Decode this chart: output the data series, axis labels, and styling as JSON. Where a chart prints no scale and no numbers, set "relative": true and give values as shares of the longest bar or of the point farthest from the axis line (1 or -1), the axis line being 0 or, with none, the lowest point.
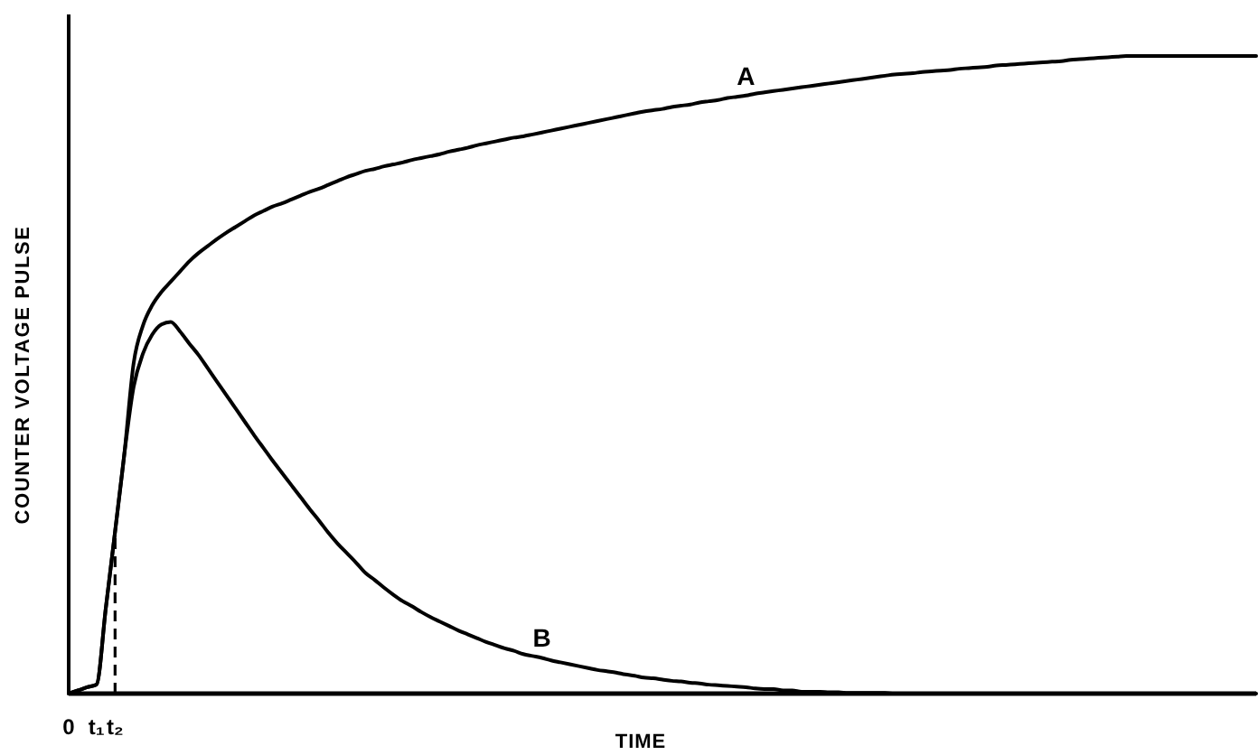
{
  "chart_data": {
    "type": "line",
    "xlabel": "TIME",
    "ylabel": "COUNTER VOLTAGE PULSE",
    "relative": true,
    "categories": [
      "0",
      null,
      null,
      "t₁",
      null,
      "t₂",
      null,
      null,
      null,
      null,
      null,
      null,
      null,
      null,
      null,
      null,
      null,
      null,
      null,
      null,
      null,
      null,
      null,
      null,
      null,
      null,
      null,
      null,
      null,
      null,
      null,
      null,
      null,
      null,
      null,
      null,
      null,
      null,
      null,
      null,
      null,
      null,
      null,
      null,
      null,
      null,
      null,
      null,
      null,
      null,
      null,
      null,
      null,
      null,
      null,
      null,
      null,
      null,
      null,
      null,
      null,
      null,
      null,
      null,
      null,
      null,
      null,
      null,
      null,
      null,
      null,
      null,
      null,
      null,
      null,
      null,
      null,
      null,
      null,
      null,
      null,
      null,
      null,
      null,
      null,
      null,
      null,
      null,
      null,
      null,
      null,
      null,
      null,
      null,
      null,
      null,
      null,
      null,
      null,
      null,
      null,
      null,
      null,
      null,
      null,
      null,
      null,
      null,
      null,
      null,
      null,
      null,
      null,
      null,
      null,
      null,
      null,
      null,
      null,
      null,
      null,
      null,
      null,
      null,
      null,
      null,
      null,
      null,
      null
    ],
    "series": [
      {
        "name": "A",
        "color": "#000000",
        "values": [
          0,
          0.005,
          0.01,
          0.014,
          0.134,
          0.254,
          0.376,
          0.518,
          0.577,
          0.609,
          0.63,
          0.646,
          0.662,
          0.678,
          0.691,
          0.702,
          0.713,
          0.723,
          0.732,
          0.741,
          0.75,
          0.757,
          0.764,
          0.769,
          0.775,
          0.781,
          0.787,
          0.792,
          0.798,
          0.804,
          0.81,
          0.815,
          0.82,
          0.823,
          0.827,
          0.83,
          0.833,
          0.837,
          0.84,
          0.843,
          0.846,
          0.85,
          0.853,
          0.856,
          0.86,
          0.863,
          0.866,
          0.869,
          0.872,
          0.874,
          0.877,
          0.88,
          0.883,
          0.886,
          0.889,
          0.892,
          0.895,
          0.898,
          0.901,
          0.904,
          0.907,
          0.91,
          0.913,
          0.915,
          0.917,
          0.92,
          0.922,
          0.924,
          0.927,
          0.929,
          0.931,
          0.934,
          0.936,
          0.938,
          0.941,
          0.943,
          0.945,
          0.947,
          0.949,
          0.951,
          0.953,
          0.955,
          0.957,
          0.959,
          0.961,
          0.963,
          0.965,
          0.967,
          0.969,
          0.971,
          0.972,
          0.973,
          0.975,
          0.976,
          0.977,
          0.978,
          0.98,
          0.981,
          0.982,
          0.983,
          0.985,
          0.986,
          0.987,
          0.988,
          0.989,
          0.99,
          0.991,
          0.992,
          0.994,
          0.995,
          0.996,
          0.997,
          0.998,
          0.999,
          1.0,
          1.0,
          1.0,
          1.0,
          1.0,
          1.0,
          1.0,
          1.0,
          1.0,
          1.0,
          1.0,
          1.0,
          1.0,
          1.0,
          1.0
        ]
      },
      {
        "name": "B",
        "color": "#000000",
        "values": [
          0,
          0.005,
          0.01,
          0.014,
          0.134,
          0.254,
          0.376,
          0.481,
          0.533,
          0.563,
          0.579,
          0.583,
          0.568,
          0.549,
          0.531,
          0.51,
          0.489,
          0.468,
          0.447,
          0.426,
          0.405,
          0.385,
          0.365,
          0.346,
          0.327,
          0.308,
          0.289,
          0.271,
          0.252,
          0.235,
          0.22,
          0.205,
          0.189,
          0.178,
          0.166,
          0.155,
          0.145,
          0.137,
          0.128,
          0.12,
          0.113,
          0.106,
          0.099,
          0.093,
          0.087,
          0.081,
          0.076,
          0.071,
          0.067,
          0.062,
          0.059,
          0.056,
          0.052,
          0.049,
          0.046,
          0.043,
          0.04,
          0.037,
          0.035,
          0.033,
          0.03,
          0.028,
          0.025,
          0.024,
          0.022,
          0.02,
          0.019,
          0.017,
          0.016,
          0.014,
          0.013,
          0.012,
          0.011,
          0.01,
          0.008,
          0.007,
          0.007,
          0.005,
          0.005,
          0.003,
          0.003,
          0.003,
          0.002,
          0.002,
          0.001,
          0.001,
          0.001,
          0.001,
          0.001,
          0,
          0,
          0,
          0,
          0,
          0,
          0,
          0,
          0,
          0,
          0,
          0,
          0,
          0,
          0,
          0,
          0,
          0,
          0,
          0,
          0,
          0,
          0,
          0,
          0,
          0,
          0,
          0,
          0,
          0,
          0,
          0,
          0,
          0,
          0,
          0,
          0,
          0,
          0,
          0
        ]
      }
    ],
    "ref_lines": [
      {
        "axis": "x",
        "value": "t₂",
        "line_style": "dashed"
      }
    ]
  }
}
